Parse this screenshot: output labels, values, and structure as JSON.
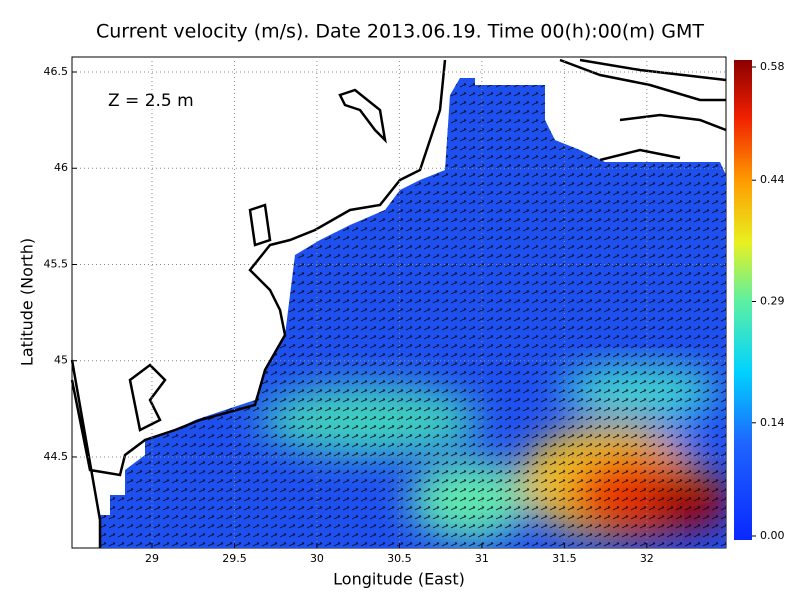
{
  "chart_data": {
    "type": "velocity-map",
    "title": "Current velocity (m/s). Date 2013.06.19. Time 00(h):00(m) GMT",
    "annotation": "Z = 2.5 m",
    "x_label": "Longitude (East)",
    "y_label": "Latitude (North)",
    "xlim": [
      28.515,
      32.48
    ],
    "xticks": [
      29,
      29.5,
      30,
      30.5,
      31,
      31.5,
      32
    ],
    "ylim": [
      44.027,
      46.578
    ],
    "yticks": [
      44.5,
      45,
      45.5,
      46,
      46.5
    ],
    "grid": true,
    "colorbar": {
      "clim": [
        0,
        0.58
      ],
      "ticks": [
        {
          "value": 0,
          "label": "0.00"
        },
        0.14,
        0.29,
        0.44,
        0.58
      ]
    }
  }
}
